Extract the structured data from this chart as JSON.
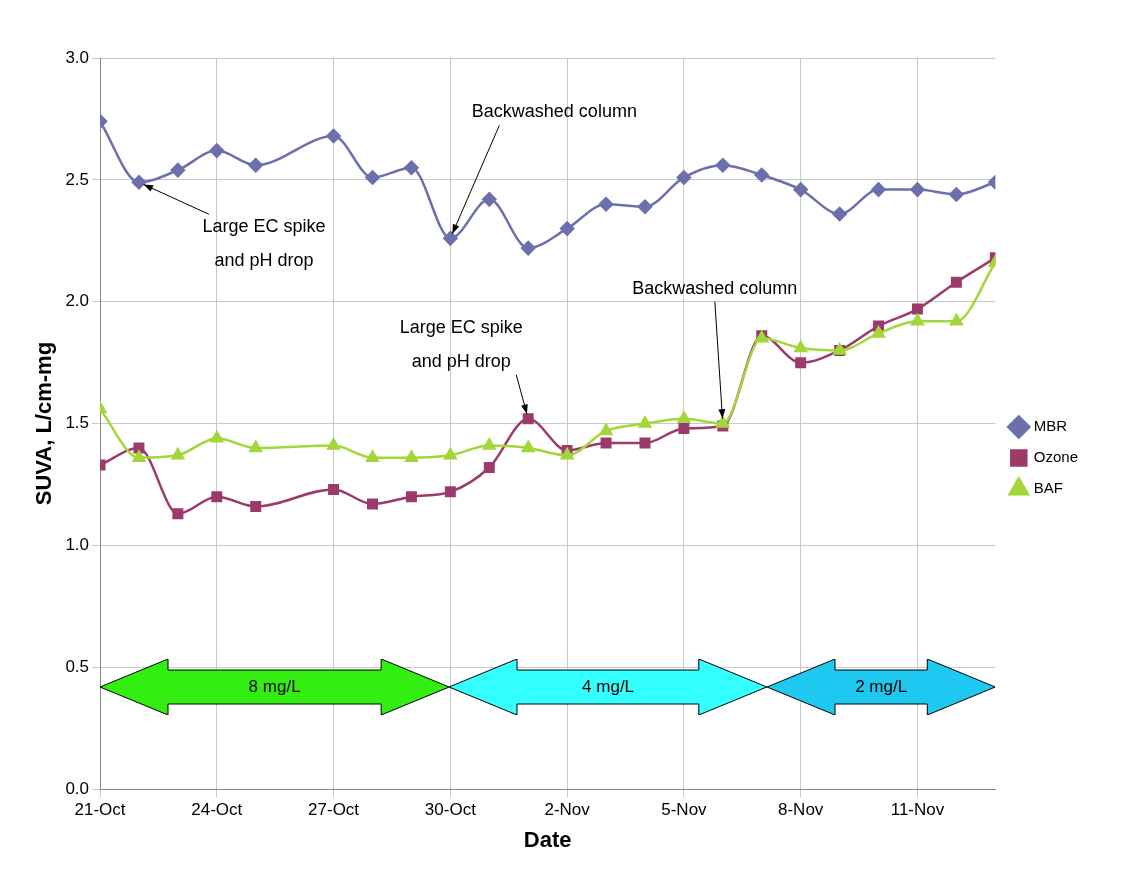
{
  "chart_data": {
    "type": "line",
    "xlabel": "Date",
    "ylabel": "SUVA, L/cm-mg",
    "x": [
      "--10-21",
      "--10-22",
      "--10-23",
      "--10-24",
      "--10-25",
      "--10-27",
      "--10-28",
      "--10-29",
      "--10-30",
      "--10-31",
      "--11-01",
      "--11-02",
      "--11-03",
      "--11-04",
      "--11-05",
      "--11-06",
      "--11-07",
      "--11-08",
      "--11-09",
      "--11-10",
      "--11-11",
      "--11-12",
      "--11-13"
    ],
    "series": [
      {
        "name": "MBR",
        "color": "#6b70ad",
        "marker": "diamond",
        "values": [
          2.74,
          2.49,
          2.54,
          2.62,
          2.56,
          2.68,
          2.51,
          2.55,
          2.26,
          2.42,
          2.22,
          2.3,
          2.4,
          2.39,
          2.51,
          2.56,
          2.52,
          2.46,
          2.36,
          2.46,
          2.46,
          2.44,
          2.49
        ]
      },
      {
        "name": "Ozone",
        "color": "#9b3a6b",
        "marker": "square",
        "values": [
          1.33,
          1.4,
          1.13,
          1.2,
          1.16,
          1.23,
          1.17,
          1.2,
          1.22,
          1.32,
          1.52,
          1.39,
          1.42,
          1.42,
          1.48,
          1.49,
          1.86,
          1.75,
          1.8,
          1.9,
          1.97,
          2.08,
          2.18
        ]
      },
      {
        "name": "BAF",
        "color": "#a3d63a",
        "marker": "triangle",
        "values": [
          1.56,
          1.36,
          1.37,
          1.44,
          1.4,
          1.41,
          1.36,
          1.36,
          1.37,
          1.41,
          1.4,
          1.37,
          1.47,
          1.5,
          1.52,
          1.5,
          1.85,
          1.81,
          1.8,
          1.87,
          1.92,
          1.92,
          2.16
        ]
      }
    ],
    "xlim": [
      "--10-21",
      "--11-13"
    ],
    "xticks": [
      {
        "value": "--10-21",
        "label": "21-Oct"
      },
      {
        "value": "--10-24",
        "label": "24-Oct"
      },
      {
        "value": "--10-27",
        "label": "27-Oct"
      },
      {
        "value": "--10-30",
        "label": "30-Oct"
      },
      {
        "value": "--11-02",
        "label": "2-Nov"
      },
      {
        "value": "--11-05",
        "label": "5-Nov"
      },
      {
        "value": "--11-08",
        "label": "8-Nov"
      },
      {
        "value": "--11-11",
        "label": "11-Nov"
      }
    ],
    "ylim": [
      0,
      3
    ],
    "yticks": [
      {
        "value": 0,
        "label": "0.0"
      },
      {
        "value": 0.5,
        "label": "0.5"
      },
      {
        "value": 1,
        "label": "1.0"
      },
      {
        "value": 1.5,
        "label": "1.5"
      },
      {
        "value": 2,
        "label": "2.0"
      },
      {
        "value": 2.5,
        "label": "2.5"
      },
      {
        "value": 3,
        "label": "3.0"
      }
    ],
    "grid": true,
    "legend": "right",
    "annotations": [
      {
        "text": "Large EC spike\nand pH drop",
        "x": "--10-22",
        "y": 2.49
      },
      {
        "text": "Backwashed column",
        "x": "--10-30",
        "y": 2.26
      },
      {
        "text": "Large EC spike\nand pH drop",
        "x": "--11-01",
        "y": 1.52
      },
      {
        "text": "Backwashed column",
        "x": "--11-06",
        "y": 1.5
      },
      "8 mg/L",
      "4 mg/L",
      "2 mg/L"
    ]
  }
}
